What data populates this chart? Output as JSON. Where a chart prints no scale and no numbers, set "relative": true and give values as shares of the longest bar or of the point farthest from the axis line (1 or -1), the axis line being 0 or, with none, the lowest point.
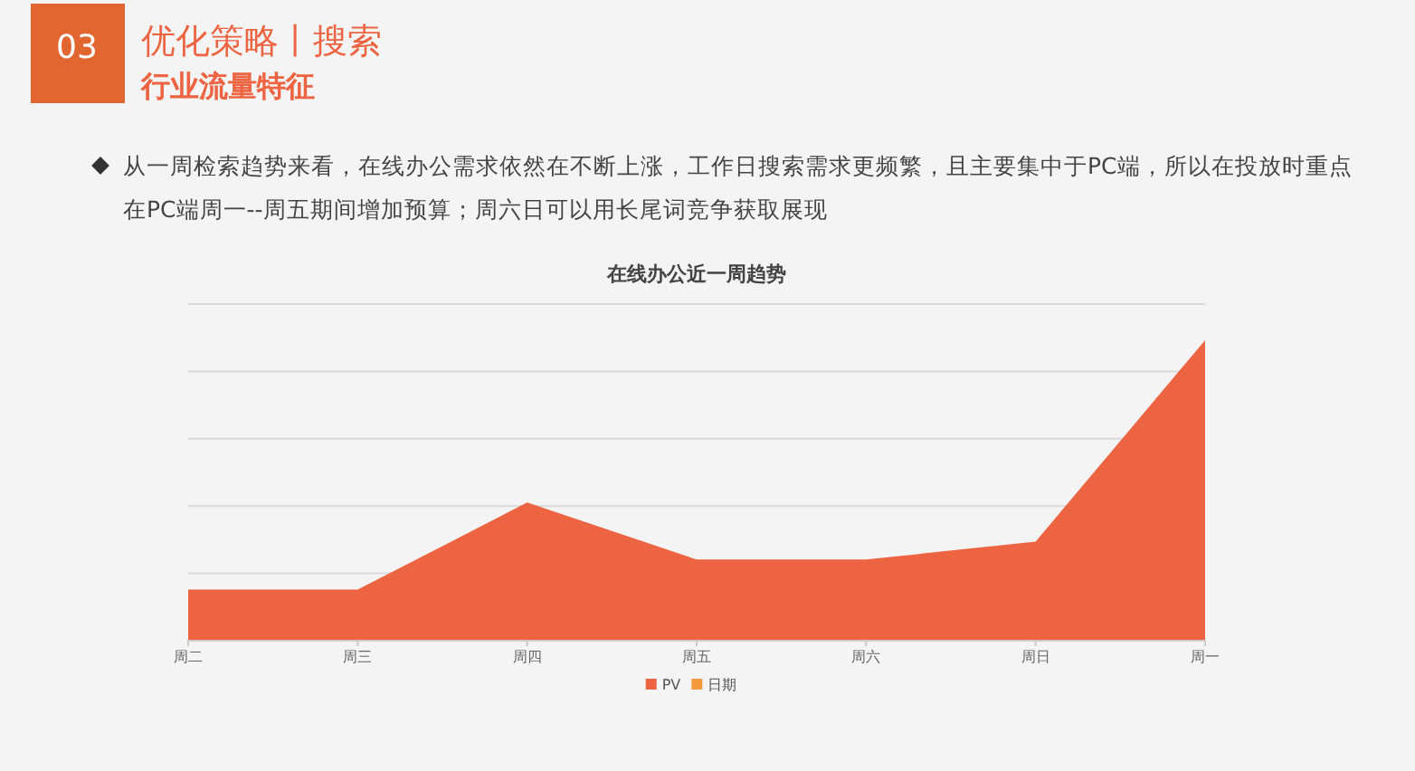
{
  "chart_data": {
    "type": "area",
    "title": "在线办公近一周趋势",
    "annotations": [
      "03",
      "优化策略丨搜索",
      "行业流量特征",
      "从一周检索趋势来看，在线办公需求依然在不断上涨，工作日搜索需求更频繁，且主要集中于PC端，所以在投放时重点在PC端周一--周五期间增加预算；周六日可以用长尾词竞争获取展现"
    ],
    "categories": [
      "周二",
      "周三",
      "周四",
      "周五",
      "周六",
      "周日",
      "周一"
    ],
    "relative": true,
    "series": [
      {
        "name": "PV",
        "color": "#ec6441",
        "values": [
          0.17,
          0.17,
          0.46,
          0.27,
          0.27,
          0.33,
          1
        ]
      },
      {
        "name": "日期",
        "color": "#f39a3d",
        "values": [
          null,
          null,
          null,
          null,
          null,
          null,
          null
        ]
      }
    ],
    "grid": "y",
    "legend": "bottom"
  }
}
